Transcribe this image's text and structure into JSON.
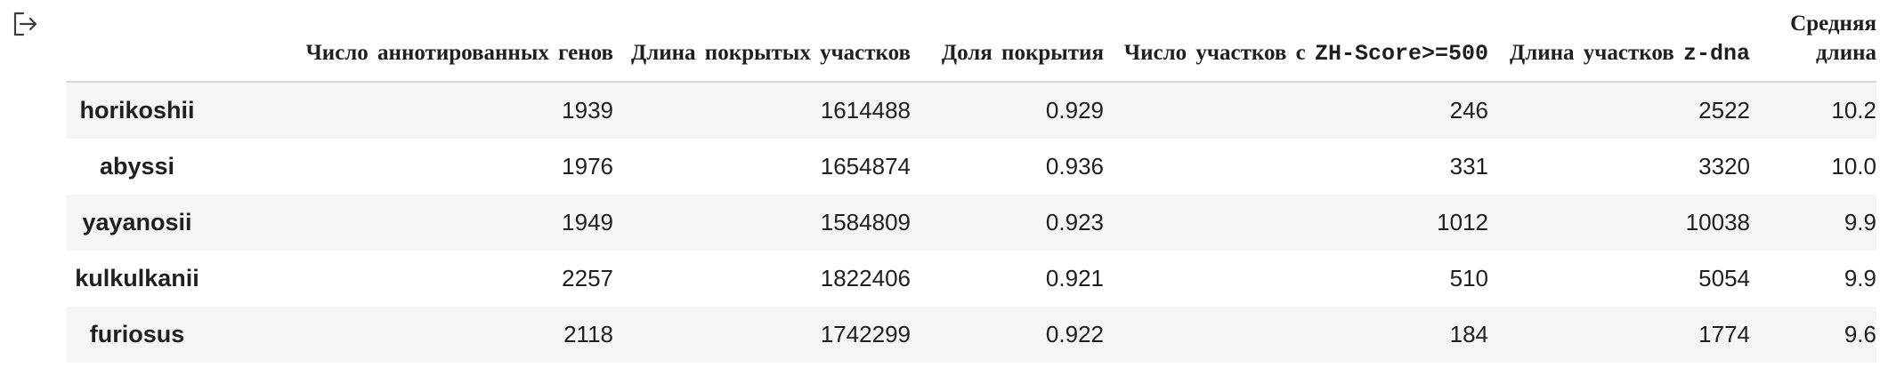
{
  "table": {
    "columns": [
      {
        "pre": "Число аннотированных генов",
        "mono": "",
        "post": ""
      },
      {
        "pre": "Длина покрытых участков",
        "mono": "",
        "post": ""
      },
      {
        "pre": "Доля покрытия",
        "mono": "",
        "post": ""
      },
      {
        "pre": "Число участков с ",
        "mono": "ZH-Score>=500",
        "post": ""
      },
      {
        "pre": "Длина участков ",
        "mono": "z-dna",
        "post": ""
      },
      {
        "pre": "Средняя длина",
        "mono": "",
        "post": ""
      }
    ],
    "rows": [
      {
        "index": "horikoshii",
        "cells": [
          "1939",
          "1614488",
          "0.929",
          "246",
          "2522",
          "10.2"
        ]
      },
      {
        "index": "abyssi",
        "cells": [
          "1976",
          "1654874",
          "0.936",
          "331",
          "3320",
          "10.0"
        ]
      },
      {
        "index": "yayanosii",
        "cells": [
          "1949",
          "1584809",
          "0.923",
          "1012",
          "10038",
          "9.9"
        ]
      },
      {
        "index": "kulkulkanii",
        "cells": [
          "2257",
          "1822406",
          "0.921",
          "510",
          "5054",
          "9.9"
        ]
      },
      {
        "index": "furiosus",
        "cells": [
          "2118",
          "1742299",
          "0.922",
          "184",
          "1774",
          "9.6"
        ]
      }
    ]
  },
  "icons": {
    "output": "output-arrow-icon"
  },
  "colors": {
    "stripe": "#f5f5f5",
    "header_rule": "#d8d8d8",
    "text": "#1f1f1f"
  }
}
